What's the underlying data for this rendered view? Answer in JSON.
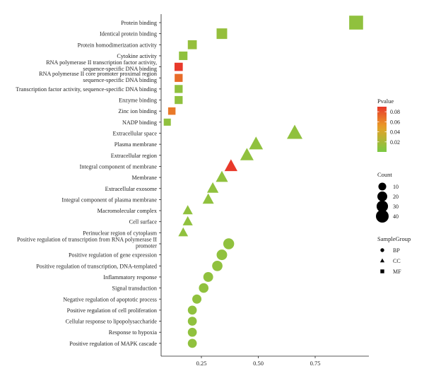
{
  "chart_data": {
    "type": "scatter",
    "title": "",
    "xlabel": "",
    "ylabel": "",
    "xlim": [
      0.06,
      1.0
    ],
    "xticks": [
      0.25,
      0.5,
      0.75
    ],
    "xtick_labels": [
      "0.25",
      "0.50",
      "0.75"
    ],
    "grid": false,
    "legend_placement": "right",
    "categories": [
      "Protein binding",
      "Identical protein binding",
      "Protein homodimerization activity",
      "Cytokine activity",
      "RNA polymerase II transcription factor activity, sequence-specific DNA binding",
      "RNA polymerase II core promoter proximal region sequence-specific DNA binding",
      "Transcription factor activity, sequence-specific DNA binding",
      "Enzyme binding",
      "Zinc ion binding",
      "NADP binding",
      "Extracellular space",
      "Plasma membrane",
      "Extracellular region",
      "Integral component of membrane",
      "Membrane",
      "Extracellular exosome",
      "Integral component of plasma membrane",
      "Macromolecular complex",
      "Cell surface",
      "Perinuclear region of cytoplasm",
      "Positive regulation of transcription from RNA polymerase II promoter",
      "Positive regulation of gene expression",
      "Positive regulation of transcription, DNA-templated",
      "Inflammatory response",
      "Signal transduction",
      "Negative regulation of apoptotic process",
      "Positive regulation of cell proliferation",
      "Cellular response to lipopolysaccharide",
      "Response to hypoxia",
      "Positive regulation of MAPK cascade"
    ],
    "category_display": [
      [
        "Protein binding"
      ],
      [
        "Identical protein binding"
      ],
      [
        "Protein homodimerization activity"
      ],
      [
        "Cytokine activity"
      ],
      [
        "RNA polymerase II transcription factor activity,",
        "sequence-specific DNA binding"
      ],
      [
        "RNA polymerase II core promoter proximal region",
        "sequence-specific DNA binding"
      ],
      [
        "Transcription factor activity, sequence-specific DNA binding"
      ],
      [
        "Enzyme binding"
      ],
      [
        "Zinc ion binding"
      ],
      [
        "NADP binding"
      ],
      [
        "Extracellular space"
      ],
      [
        "Plasma membrane"
      ],
      [
        "Extracellular region"
      ],
      [
        "Integral component of membrane"
      ],
      [
        "Membrane"
      ],
      [
        "Extracellular exosome"
      ],
      [
        "Integral component of plasma membrane"
      ],
      [
        "Macromolecular complex"
      ],
      [
        "Cell surface"
      ],
      [
        "Perinuclear region of cytoplasm"
      ],
      [
        "Positive regulation of transcription from RNA polymerase II",
        "promoter"
      ],
      [
        "Positive regulation of gene expression"
      ],
      [
        "Positive regulation of transcription, DNA-templated"
      ],
      [
        "Inflammatory response"
      ],
      [
        "Signal transduction"
      ],
      [
        "Negative regulation of apoptotic process"
      ],
      [
        "Positive regulation of cell proliferation"
      ],
      [
        "Cellular response to lipopolysaccharide"
      ],
      [
        "Response to hypoxia"
      ],
      [
        "Positive regulation of MAPK cascade"
      ]
    ],
    "points": [
      {
        "x": 0.93,
        "pvalue": 0.01,
        "count": 44,
        "group": "MF"
      },
      {
        "x": 0.34,
        "pvalue": 0.012,
        "count": 21,
        "group": "MF"
      },
      {
        "x": 0.21,
        "pvalue": 0.012,
        "count": 13,
        "group": "MF"
      },
      {
        "x": 0.17,
        "pvalue": 0.01,
        "count": 11,
        "group": "MF"
      },
      {
        "x": 0.15,
        "pvalue": 0.09,
        "count": 10,
        "group": "MF"
      },
      {
        "x": 0.15,
        "pvalue": 0.07,
        "count": 9,
        "group": "MF"
      },
      {
        "x": 0.15,
        "pvalue": 0.01,
        "count": 9,
        "group": "MF"
      },
      {
        "x": 0.15,
        "pvalue": 0.01,
        "count": 9,
        "group": "MF"
      },
      {
        "x": 0.12,
        "pvalue": 0.065,
        "count": 7,
        "group": "MF"
      },
      {
        "x": 0.1,
        "pvalue": 0.01,
        "count": 6,
        "group": "MF"
      },
      {
        "x": 0.66,
        "pvalue": 0.01,
        "count": 41,
        "group": "CC"
      },
      {
        "x": 0.49,
        "pvalue": 0.01,
        "count": 31,
        "group": "CC"
      },
      {
        "x": 0.45,
        "pvalue": 0.01,
        "count": 28,
        "group": "CC"
      },
      {
        "x": 0.38,
        "pvalue": 0.09,
        "count": 25,
        "group": "CC"
      },
      {
        "x": 0.34,
        "pvalue": 0.01,
        "count": 21,
        "group": "CC"
      },
      {
        "x": 0.3,
        "pvalue": 0.01,
        "count": 18,
        "group": "CC"
      },
      {
        "x": 0.28,
        "pvalue": 0.01,
        "count": 17,
        "group": "CC"
      },
      {
        "x": 0.19,
        "pvalue": 0.01,
        "count": 12,
        "group": "CC"
      },
      {
        "x": 0.19,
        "pvalue": 0.01,
        "count": 12,
        "group": "CC"
      },
      {
        "x": 0.17,
        "pvalue": 0.01,
        "count": 11,
        "group": "CC"
      },
      {
        "x": 0.37,
        "pvalue": 0.01,
        "count": 23,
        "group": "BP"
      },
      {
        "x": 0.34,
        "pvalue": 0.01,
        "count": 21,
        "group": "BP"
      },
      {
        "x": 0.32,
        "pvalue": 0.01,
        "count": 20,
        "group": "BP"
      },
      {
        "x": 0.28,
        "pvalue": 0.01,
        "count": 17,
        "group": "BP"
      },
      {
        "x": 0.26,
        "pvalue": 0.01,
        "count": 16,
        "group": "BP"
      },
      {
        "x": 0.23,
        "pvalue": 0.01,
        "count": 14,
        "group": "BP"
      },
      {
        "x": 0.21,
        "pvalue": 0.01,
        "count": 13,
        "group": "BP"
      },
      {
        "x": 0.21,
        "pvalue": 0.01,
        "count": 13,
        "group": "BP"
      },
      {
        "x": 0.21,
        "pvalue": 0.01,
        "count": 13,
        "group": "BP"
      },
      {
        "x": 0.21,
        "pvalue": 0.01,
        "count": 13,
        "group": "BP"
      }
    ],
    "legend": {
      "pvalue_title": "Pvalue",
      "pvalue_range": [
        0.0,
        0.09
      ],
      "pvalue_ticks": [
        0.02,
        0.04,
        0.06,
        0.08
      ],
      "pvalue_tick_labels": [
        "0.02",
        "0.04",
        "0.06",
        "0.08"
      ],
      "pvalue_low_color": "#7ac943",
      "pvalue_high_color": "#e8392a",
      "count_title": "Count",
      "count_values": [
        10,
        20,
        30,
        40
      ],
      "group_title": "SampleGroup",
      "groups": [
        "BP",
        "CC",
        "MF"
      ]
    }
  }
}
